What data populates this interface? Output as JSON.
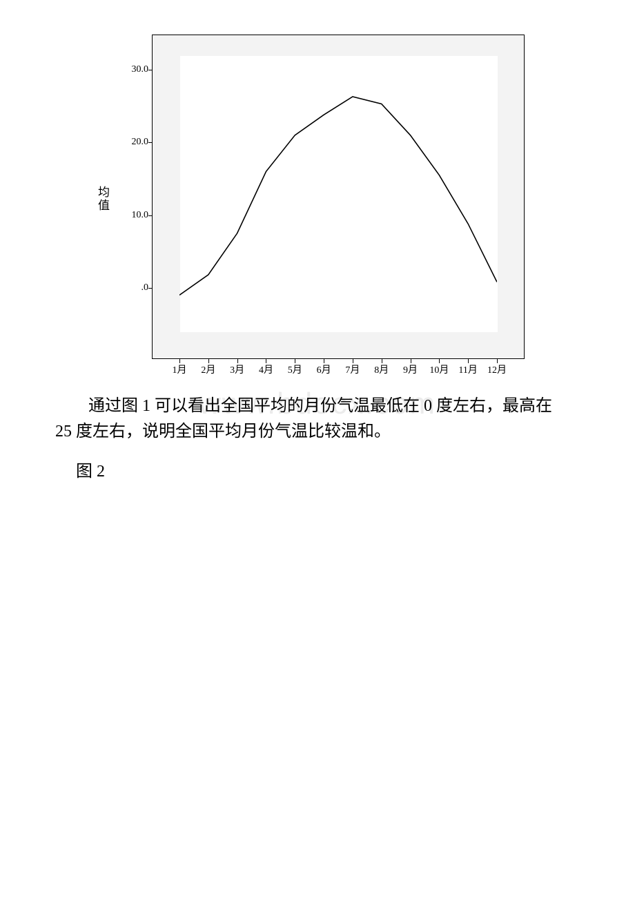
{
  "chart": {
    "type": "line",
    "x_labels": [
      "1月",
      "2月",
      "3月",
      "4月",
      "5月",
      "6月",
      "7月",
      "8月",
      "9月",
      "10月",
      "11月",
      "12月"
    ],
    "y_values": [
      -1.0,
      1.8,
      7.5,
      16.0,
      21.0,
      23.8,
      26.3,
      25.3,
      21.0,
      15.5,
      8.8,
      0.8
    ],
    "ylim": [
      -6,
      32
    ],
    "yticks": [
      0.0,
      10.0,
      20.0,
      30.0
    ],
    "ytick_labels": [
      ".0",
      "10.0",
      "20.0",
      "30.0"
    ],
    "y_axis_label_chars": [
      "均",
      "值"
    ],
    "line_color": "#000000",
    "line_width": 1.6,
    "plot_bg": "#f3f3f3",
    "inner_bg": "#ffffff",
    "tick_fontsize": 14,
    "axis_label_fontsize": 17
  },
  "text": {
    "para1_part1": "通过图 1 可以看出全国平均的月份气温最低在 0 度左右，最高在",
    "para1_part2": "25 度左右，说明全国平均月份气温比较温和。",
    "fig2_label": "图 2"
  },
  "watermark": "www.bdocx.com"
}
